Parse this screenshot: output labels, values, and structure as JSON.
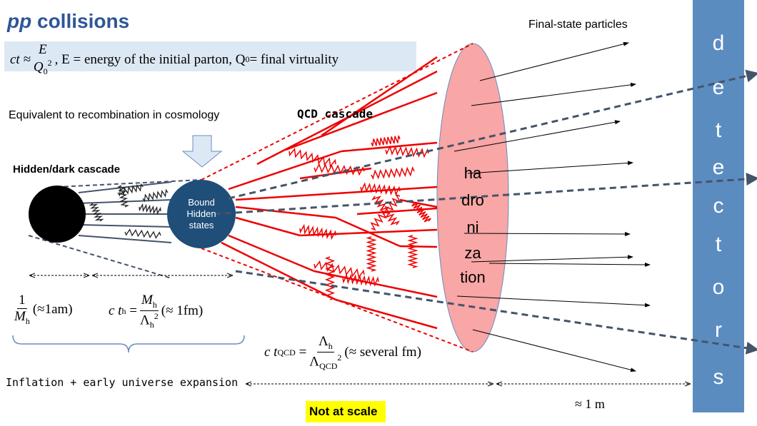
{
  "title": {
    "italic": "pp",
    "rest": "collisions"
  },
  "formula_top": {
    "lhs": "ct ≈",
    "num": "E",
    "den": "Q",
    "den_sub": "0",
    "den_sup": "2",
    "mid": ",   E = energy of the initial parton,  Q",
    "mid_sub": "0",
    "end": " = final virtuality"
  },
  "final_state": "Final-state particles",
  "qcd_cascade": "QCD cascade",
  "recombination": "Equivalent to recombination in cosmology",
  "hidden_cascade": "Hidden/dark cascade",
  "bound_states": [
    "Bound",
    "Hidden",
    "states"
  ],
  "hadronization": [
    "ha",
    "dro",
    "ni",
    "za",
    "tion"
  ],
  "detectors": [
    "d",
    "e",
    "t",
    "e",
    "c",
    "t",
    "o",
    "r",
    "s"
  ],
  "formula_mass": {
    "num": "1",
    "den": "M",
    "den_sub": "h",
    "tail": "(≈1am)"
  },
  "formula_hidden": {
    "lhs": "c t",
    "lhs_sub": "h",
    "eq": "=",
    "num": "M",
    "num_sub": "h",
    "den": "Λ",
    "den_sub": "h",
    "den_sup": "2",
    "tail": "(≈ 1fm)"
  },
  "formula_qcd": {
    "lhs": "c t",
    "lhs_sub": "QCD",
    "eq": "=",
    "num": "Λ",
    "num_sub": "h",
    "den": "Λ",
    "den_sub": "QCD",
    "den_sup": "2",
    "tail": "(≈  several fm)"
  },
  "inflation": "Inflation + early universe expansion",
  "one_meter": "≈ 1 m",
  "not_at_scale": "Not at scale"
}
